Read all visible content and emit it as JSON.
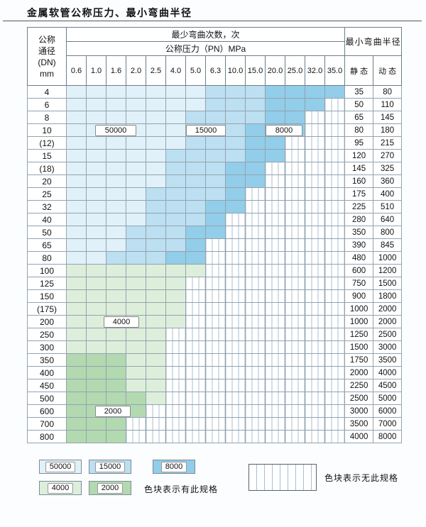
{
  "title": "金属软管公称压力、最小弯曲半径",
  "table": {
    "dn_header": [
      "公称",
      "通径",
      "(DN)",
      "mm"
    ],
    "cycles_header": "最少弯曲次数，次",
    "pressure_header": "公称压力（PN）MPa",
    "pressures": [
      "0.6",
      "1.0",
      "1.6",
      "2.0",
      "2.5",
      "4.0",
      "5.0",
      "6.3",
      "10.0",
      "15.0",
      "20.0",
      "25.0",
      "32.0",
      "35.0"
    ],
    "radius_header": "最小弯曲半径",
    "static_label": "静 态",
    "dynamic_label": "动 态",
    "rows": [
      {
        "dn": "4",
        "zones": "AAAAAAABBBCCCC",
        "static": "35",
        "dynamic": "80"
      },
      {
        "dn": "6",
        "zones": "AAAAAAABBBCCCH",
        "static": "50",
        "dynamic": "110"
      },
      {
        "dn": "8",
        "zones": "AAAAAABBBBCCHH",
        "static": "65",
        "dynamic": "145"
      },
      {
        "dn": "10",
        "zones": "AAAAAABBBCCCHH",
        "static": "80",
        "dynamic": "180"
      },
      {
        "dn": "(12)",
        "zones": "AAAAAABBBCCHHH",
        "static": "95",
        "dynamic": "215"
      },
      {
        "dn": "15",
        "zones": "AAAAABBBBCCHHH",
        "static": "120",
        "dynamic": "270"
      },
      {
        "dn": "(18)",
        "zones": "AAAAABBBCCHHHH",
        "static": "145",
        "dynamic": "325"
      },
      {
        "dn": "20",
        "zones": "AAAAABBBCCHHHH",
        "static": "160",
        "dynamic": "360"
      },
      {
        "dn": "25",
        "zones": "AAAABBBBCHHHHH",
        "static": "175",
        "dynamic": "400"
      },
      {
        "dn": "32",
        "zones": "AAAABBBCCHHHHH",
        "static": "225",
        "dynamic": "510"
      },
      {
        "dn": "40",
        "zones": "AAAABBBCHHHHHH",
        "static": "280",
        "dynamic": "640"
      },
      {
        "dn": "50",
        "zones": "AAABBBCCHHHHHH",
        "static": "350",
        "dynamic": "800"
      },
      {
        "dn": "65",
        "zones": "AAABBBCHHHHHHH",
        "static": "390",
        "dynamic": "845"
      },
      {
        "dn": "80",
        "zones": "AABBBCCHHHHHHH",
        "static": "480",
        "dynamic": "1000"
      },
      {
        "dn": "100",
        "zones": "DDDDDDDHHHHHHH",
        "static": "600",
        "dynamic": "1200"
      },
      {
        "dn": "125",
        "zones": "DDDDDDHHHHHHHH",
        "static": "750",
        "dynamic": "1500"
      },
      {
        "dn": "150",
        "zones": "DDDDDDHHHHHHHH",
        "static": "900",
        "dynamic": "1800"
      },
      {
        "dn": "(175)",
        "zones": "DDDDDDHHHHHHHH",
        "static": "1000",
        "dynamic": "2000"
      },
      {
        "dn": "200",
        "zones": "DDDDDDHHHHHHHH",
        "static": "1000",
        "dynamic": "2000"
      },
      {
        "dn": "250",
        "zones": "DDDDDHHHHHHHHH",
        "static": "1250",
        "dynamic": "2500"
      },
      {
        "dn": "300",
        "zones": "DDDDDHHHHHHHHH",
        "static": "1500",
        "dynamic": "3000"
      },
      {
        "dn": "350",
        "zones": "EEEDDHHHHHHHHH",
        "static": "1750",
        "dynamic": "3500"
      },
      {
        "dn": "400",
        "zones": "EEEDDHHHHHHHHH",
        "static": "2000",
        "dynamic": "4000"
      },
      {
        "dn": "450",
        "zones": "EEEDDHHHHHHHHH",
        "static": "2250",
        "dynamic": "4500"
      },
      {
        "dn": "500",
        "zones": "EEEEDHHHHHHHHH",
        "static": "2500",
        "dynamic": "5000"
      },
      {
        "dn": "600",
        "zones": "EEEEHHHHHHHHHH",
        "static": "3000",
        "dynamic": "6000"
      },
      {
        "dn": "700",
        "zones": "EEEHHHHHHHHHHH",
        "static": "3500",
        "dynamic": "7000"
      },
      {
        "dn": "800",
        "zones": "EEEHHHHHHHHHHH",
        "static": "4000",
        "dynamic": "8000"
      }
    ]
  },
  "colors": {
    "A": "#e1f1f9",
    "B": "#bcdff1",
    "C": "#92cde9",
    "D": "#ddeedb",
    "E": "#b3d9b0"
  },
  "legend": {
    "items": [
      {
        "zone": "A",
        "label": "50000"
      },
      {
        "zone": "B",
        "label": "15000"
      },
      {
        "zone": "C",
        "label": "8000"
      },
      {
        "zone": "D",
        "label": "4000"
      },
      {
        "zone": "E",
        "label": "2000"
      }
    ],
    "has_spec_text": "色块表示有此规格",
    "no_spec_text": "色块表示无此规格"
  }
}
